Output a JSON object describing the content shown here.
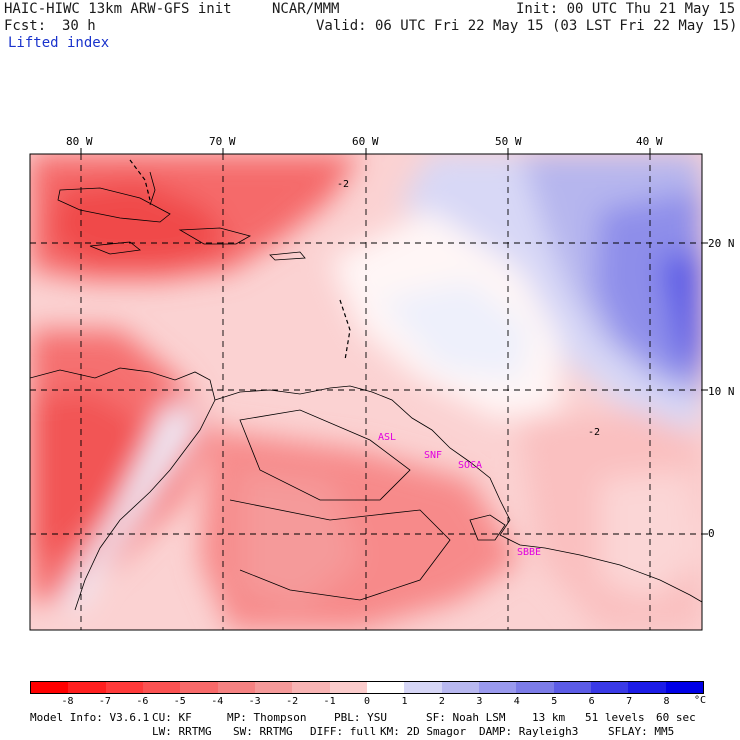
{
  "header": {
    "model": "HAIC-HIWC 13km ARW-GFS init",
    "org": "NCAR/MMM",
    "init": "Init: 00 UTC Thu 21 May 15",
    "fcst_label": "Fcst:",
    "fcst_value": "30 h",
    "valid": "Valid: 06 UTC Fri 22 May 15 (03 LST Fri 22 May 15)",
    "field": "Lifted index"
  },
  "map": {
    "lon_labels": [
      "80 W",
      "70 W",
      "60 W",
      "50 W",
      "40 W"
    ],
    "lat_labels": [
      "20 N",
      "10 N",
      "0"
    ],
    "contour_labels": [
      "-2",
      "-2"
    ],
    "stations": [
      "ASL",
      "SNF",
      "SOCA",
      "SBBE"
    ]
  },
  "colorbar": {
    "tick_labels": [
      "-8",
      "-7",
      "-6",
      "-5",
      "-4",
      "-3",
      "-2",
      "-1",
      "0",
      "1",
      "2",
      "3",
      "4",
      "5",
      "6",
      "7",
      "8"
    ],
    "unit": "°C",
    "colors": [
      "#ff0000",
      "#ff1f1f",
      "#ff3a3a",
      "#fb5252",
      "#f86a6a",
      "#f58282",
      "#f59a9a",
      "#f8b4b4",
      "#fbcccc",
      "#ffffff",
      "#d6d6f6",
      "#b8b8f0",
      "#9a9aee",
      "#7c7ce8",
      "#5c5ce6",
      "#3a3ae6",
      "#1c1ce6",
      "#0000e6"
    ]
  },
  "footer": {
    "line1": [
      "Model Info: V3.6.1",
      "CU: KF",
      "MP: Thompson",
      "PBL: YSU",
      "SF: Noah LSM",
      "13 km",
      "51 levels",
      "60 sec"
    ],
    "line2": [
      "LW: RRTMG",
      "SW: RRTMG",
      "DIFF: full",
      "KM: 2D Smagor",
      "DAMP: Rayleigh3",
      "SFLAY: MM5"
    ]
  }
}
